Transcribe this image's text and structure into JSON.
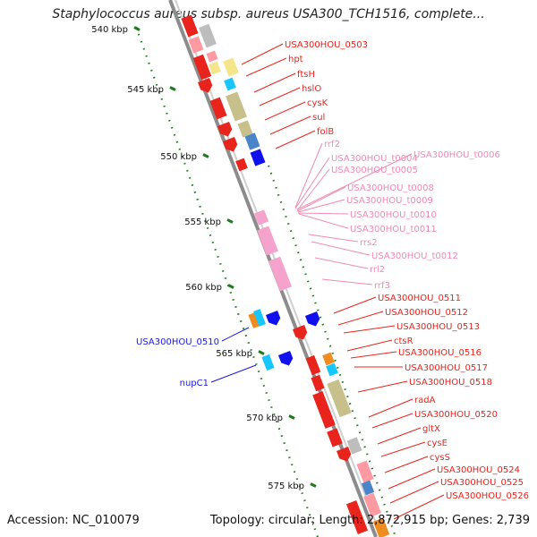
{
  "title": "Staphylococcus aureus subsp. aureus USA300_TCH1516, complete...",
  "accession": "Accession: NC_010079",
  "summary": "Topology: circular; Length: 2,872,915 bp; Genes: 2,739",
  "colors": {
    "backbone": "#8c8c8c",
    "scale_tick": "#1f7a1f",
    "forward_label": "#e8241c",
    "rna_label": "#f08ab4",
    "reverse_label": "#1a1adc"
  },
  "scale_ticks": [
    "540 kbp",
    "545 kbp",
    "550 kbp",
    "555 kbp",
    "560 kbp",
    "565 kbp",
    "570 kbp",
    "575 kbp"
  ],
  "forward_labels": [
    "USA300HOU_0503",
    "hpt",
    "ftsH",
    "hslO",
    "cysK",
    "sul",
    "folB",
    "USA300HOU_0511",
    "USA300HOU_0512",
    "USA300HOU_0513",
    "ctsR",
    "USA300HOU_0516",
    "USA300HOU_0517",
    "USA300HOU_0518",
    "radA",
    "USA300HOU_0520",
    "gltX",
    "cysE",
    "cysS",
    "USA300HOU_0524",
    "USA300HOU_0525",
    "USA300HOU_0526"
  ],
  "rna_labels": [
    "rrf2",
    "USA300HOU_t0004",
    "USA300HOU_t0006",
    "USA300HOU_t0005",
    "USA300HOU_t0008",
    "USA300HOU_t0009",
    "USA300HOU_t0010",
    "USA300HOU_t0011",
    "rrs2",
    "USA300HOU_t0012",
    "rrl2",
    "rrf3"
  ],
  "reverse_labels": [
    "USA300HOU_0510",
    "nupC1"
  ]
}
